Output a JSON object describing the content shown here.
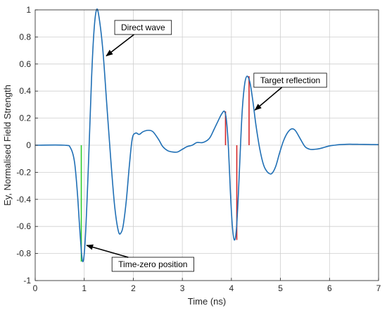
{
  "chart_data": {
    "type": "line",
    "xlabel": "Time (ns)",
    "ylabel": "Ey, Normalised Field Strength",
    "xlim": [
      0,
      7
    ],
    "ylim": [
      -1,
      1
    ],
    "xticks": [
      0,
      1,
      2,
      3,
      4,
      5,
      6,
      7
    ],
    "xtick_labels": [
      "0",
      "1",
      "2",
      "3",
      "4",
      "5",
      "6",
      "7"
    ],
    "yticks": [
      -1,
      -0.8,
      -0.6,
      -0.4,
      -0.2,
      0,
      0.2,
      0.4,
      0.6,
      0.8,
      1
    ],
    "ytick_labels": [
      "-1",
      "-0.8",
      "-0.6",
      "-0.4",
      "-0.2",
      "0",
      "0.2",
      "0.4",
      "0.6",
      "0.8",
      "1"
    ],
    "grid": true,
    "series": [
      {
        "color": "#1f6fb5",
        "x": [
          0,
          0.6,
          0.72,
          0.8,
          0.86,
          0.92,
          0.97,
          1.02,
          1.08,
          1.15,
          1.2,
          1.25,
          1.3,
          1.38,
          1.46,
          1.54,
          1.62,
          1.7,
          1.76,
          1.8,
          1.86,
          1.92,
          1.98,
          2.05,
          2.12,
          2.2,
          2.3,
          2.4,
          2.52,
          2.6,
          2.7,
          2.8,
          2.9,
          3.0,
          3.1,
          3.2,
          3.3,
          3.42,
          3.55,
          3.65,
          3.73,
          3.8,
          3.86,
          3.9,
          3.94,
          3.98,
          4.02,
          4.06,
          4.1,
          4.14,
          4.18,
          4.22,
          4.27,
          4.32,
          4.38,
          4.44,
          4.5,
          4.58,
          4.66,
          4.74,
          4.82,
          4.9,
          4.98,
          5.06,
          5.14,
          5.22,
          5.3,
          5.4,
          5.5,
          5.6,
          5.7,
          5.8,
          5.9,
          6.0,
          6.1,
          6.2,
          6.35,
          6.5,
          6.7,
          6.85,
          7.0
        ],
        "y": [
          0,
          0,
          -0.02,
          -0.12,
          -0.35,
          -0.68,
          -0.86,
          -0.7,
          -0.2,
          0.5,
          0.85,
          1.0,
          0.95,
          0.7,
          0.3,
          -0.1,
          -0.45,
          -0.64,
          -0.64,
          -0.58,
          -0.4,
          -0.15,
          0.05,
          0.09,
          0.08,
          0.1,
          0.11,
          0.1,
          0.04,
          -0.01,
          -0.04,
          -0.05,
          -0.05,
          -0.03,
          -0.01,
          0.0,
          0.02,
          0.02,
          0.05,
          0.12,
          0.18,
          0.23,
          0.25,
          0.18,
          -0.02,
          -0.35,
          -0.6,
          -0.7,
          -0.63,
          -0.38,
          -0.05,
          0.25,
          0.45,
          0.51,
          0.46,
          0.32,
          0.15,
          -0.03,
          -0.15,
          -0.2,
          -0.21,
          -0.16,
          -0.06,
          0.03,
          0.09,
          0.12,
          0.11,
          0.05,
          -0.01,
          -0.03,
          -0.03,
          -0.025,
          -0.015,
          -0.005,
          0.0,
          0.004,
          0.007,
          0.007,
          0.006,
          0.005,
          0.004
        ]
      }
    ],
    "markers": [
      {
        "color": "#2ecc2e",
        "x": 0.94,
        "y0": 0,
        "y1": -0.86
      },
      {
        "color": "#d62728",
        "x": 3.88,
        "y0": 0,
        "y1": 0.25
      },
      {
        "color": "#d62728",
        "x": 4.11,
        "y0": 0,
        "y1": -0.7
      },
      {
        "color": "#d62728",
        "x": 4.36,
        "y0": 0,
        "y1": 0.51
      }
    ],
    "annotations": [
      {
        "text": "Direct wave",
        "box_x": 2.2,
        "box_y": 0.87,
        "arrow_x": 1.45,
        "arrow_y": 0.66
      },
      {
        "text": "Target reflection",
        "box_x": 5.2,
        "box_y": 0.48,
        "arrow_x": 4.48,
        "arrow_y": 0.26
      },
      {
        "text": "Time-zero position",
        "box_x": 2.4,
        "box_y": -0.88,
        "arrow_x": 1.05,
        "arrow_y": -0.74
      }
    ]
  }
}
